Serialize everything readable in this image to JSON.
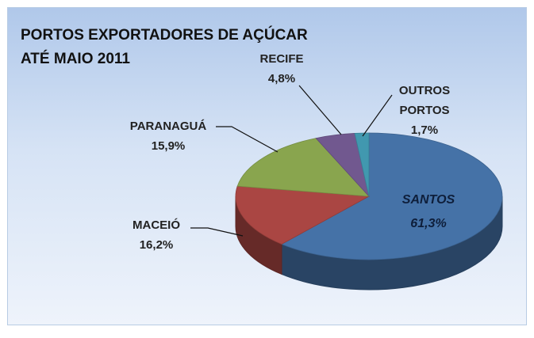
{
  "chart_data": {
    "type": "pie",
    "title": [
      "PORTOS EXPORTADORES DE AÇÚCAR",
      "ATÉ MAIO 2011"
    ],
    "categories": [
      "SANTOS",
      "MACEIÓ",
      "PARANAGUÁ",
      "RECIFE",
      "OUTROS PORTOS"
    ],
    "values": [
      61.3,
      16.2,
      15.9,
      4.8,
      1.7
    ],
    "value_labels": [
      "61,3%",
      "16,2%",
      "15,9%",
      "4,8%",
      "1,7%"
    ],
    "colors": [
      "#4572a7",
      "#aa4643",
      "#89a54e",
      "#71588f",
      "#4198af"
    ]
  }
}
